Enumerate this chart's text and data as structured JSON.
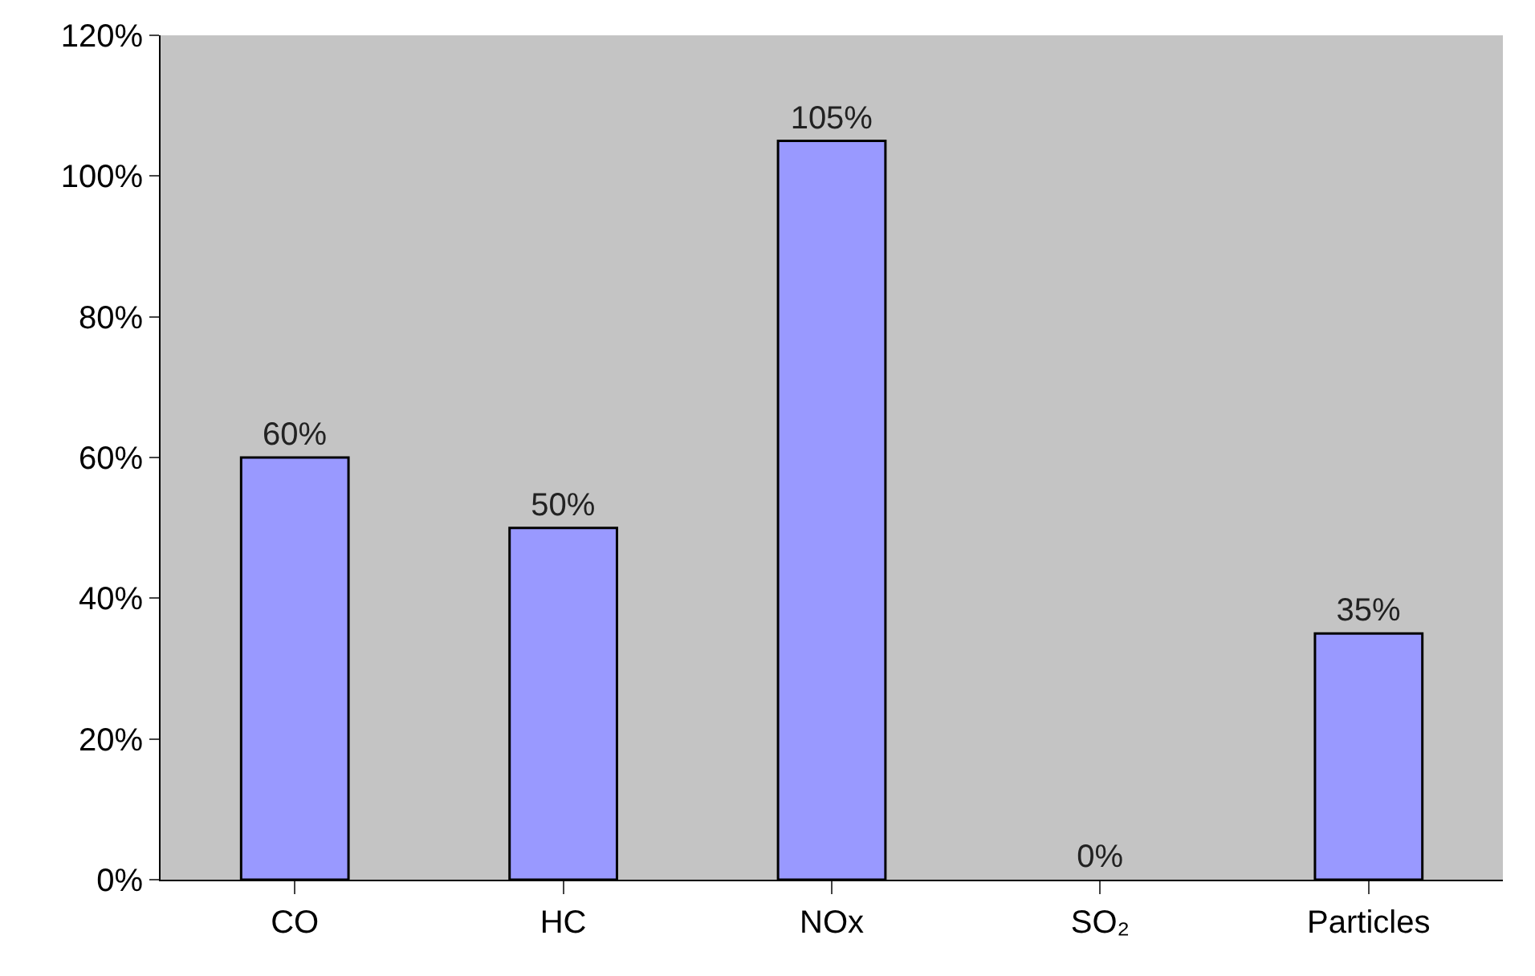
{
  "chart_data": {
    "type": "bar",
    "categories": [
      "CO",
      "HC",
      "NOx",
      "SO₂",
      "Particles"
    ],
    "values": [
      60,
      50,
      105,
      0,
      35
    ],
    "color": "#9999ff",
    "value_labels": [
      "60%",
      "50%",
      "105%",
      "0%",
      "35%"
    ],
    "ylim": [
      0,
      120
    ],
    "yticks": [
      {
        "value": 0,
        "label": "0%"
      },
      {
        "value": 20,
        "label": "20%"
      },
      {
        "value": 40,
        "label": "40%"
      },
      {
        "value": 60,
        "label": "60%"
      },
      {
        "value": 80,
        "label": "80%"
      },
      {
        "value": 100,
        "label": "100%"
      },
      {
        "value": 120,
        "label": "120%"
      }
    ],
    "grid": false,
    "legend": false
  }
}
